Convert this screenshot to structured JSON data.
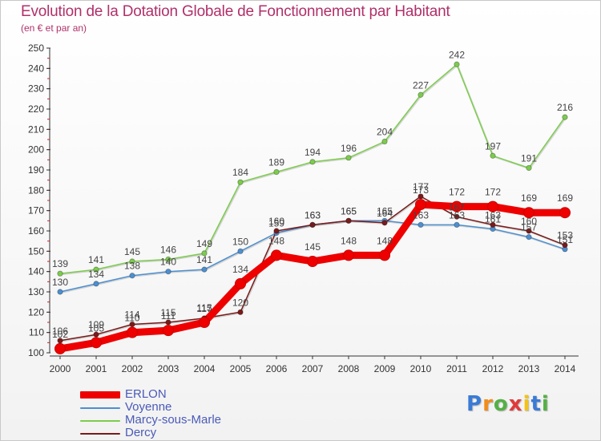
{
  "title": "Evolution de la Dotation Globale de Fonctionnement par Habitant",
  "subtitle": "(en € et par an)",
  "logo_text": "Proxiti",
  "colors": {
    "title": "#b0306a",
    "axis": "#333333",
    "legend_text": "#4a5ab8"
  },
  "chart_data": {
    "type": "line",
    "title": "Evolution de la Dotation Globale de Fonctionnement par Habitant",
    "subtitle": "(en € et par an)",
    "x": [
      "2000",
      "2001",
      "2002",
      "2003",
      "2004",
      "2005",
      "2006",
      "2007",
      "2008",
      "2009",
      "2010",
      "2011",
      "2012",
      "2013",
      "2014"
    ],
    "ylim": [
      100,
      250
    ],
    "yticks": [
      100,
      110,
      120,
      130,
      140,
      150,
      160,
      170,
      180,
      190,
      200,
      210,
      220,
      230,
      240,
      250
    ],
    "grid": false,
    "legend_position": "bottom-left",
    "series": [
      {
        "name": "ERLON",
        "color": "#ee0000",
        "values": [
          102,
          105,
          110,
          111,
          115,
          134,
          148,
          145,
          148,
          148,
          173,
          172,
          172,
          169,
          169
        ]
      },
      {
        "name": "Voyenne",
        "color": "#4d8fd0",
        "values": [
          130,
          134,
          138,
          140,
          141,
          150,
          159,
          163,
          165,
          165,
          163,
          163,
          161,
          157,
          151
        ]
      },
      {
        "name": "Marcy-sous-Marle",
        "color": "#7ccc4c",
        "values": [
          139,
          141,
          145,
          146,
          149,
          184,
          189,
          194,
          196,
          204,
          227,
          242,
          197,
          191,
          216
        ]
      },
      {
        "name": "Dercy",
        "color": "#7a1a1a",
        "values": [
          106,
          109,
          114,
          115,
          117,
          120,
          160,
          163,
          165,
          164,
          177,
          167,
          163,
          160,
          153
        ]
      }
    ]
  }
}
